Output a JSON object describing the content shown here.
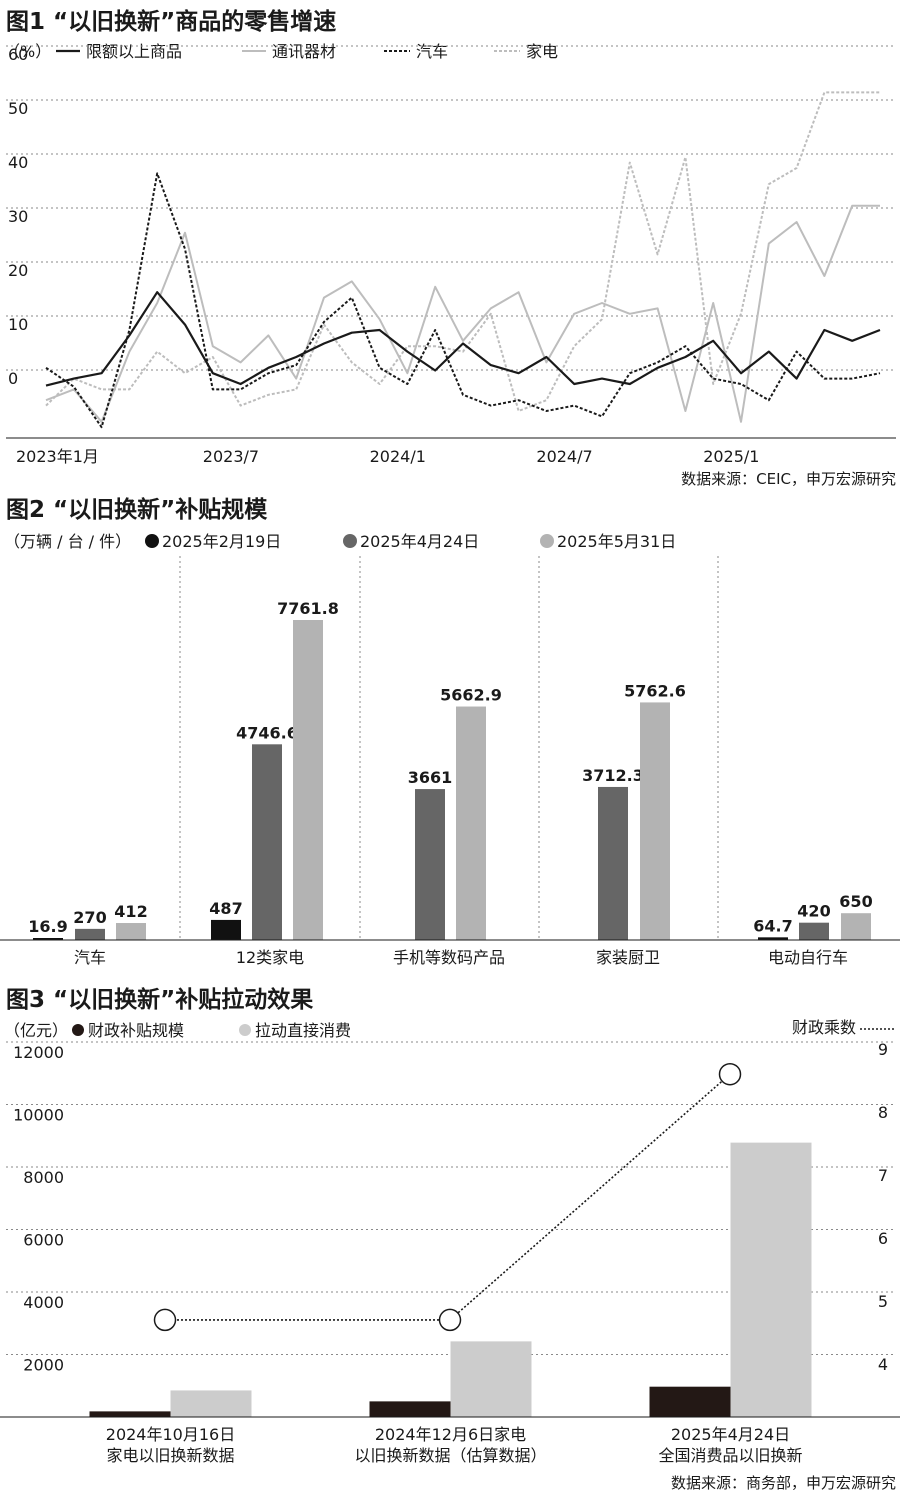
{
  "figure1": {
    "title": "图1 “以旧换新”商品的零售增速",
    "unit": "（%）",
    "source": "数据来源：CEIC，申万宏源研究",
    "chart_data": {
      "type": "line",
      "y_ticks": [
        "60",
        "50",
        "40",
        "30",
        "20",
        "10",
        "0"
      ],
      "ylim": [
        -8,
        60
      ],
      "x_ticks": [
        {
          "label": "2023年1月",
          "i": 0
        },
        {
          "label": "2023/7",
          "i": 6
        },
        {
          "label": "2024/1",
          "i": 12
        },
        {
          "label": "2024/7",
          "i": 18
        },
        {
          "label": "2025/1",
          "i": 24
        }
      ],
      "grid": "dotted-horizontal",
      "legend_position": "top-left",
      "series": [
        {
          "name": "限额以上商品",
          "color": "#1a1a1a",
          "dash": "none",
          "width": 2.2,
          "values": [
            -0.3,
            1,
            2,
            9,
            17,
            11,
            2,
            0,
            3,
            5,
            7.5,
            9.5,
            10,
            6,
            2.5,
            7.5,
            3.5,
            2,
            5,
            0,
            1,
            0,
            3,
            5,
            8,
            2,
            6,
            1,
            10,
            8,
            10
          ]
        },
        {
          "name": "通讯器材",
          "color": "#bdbdbd",
          "dash": "none",
          "width": 2,
          "values": [
            -3,
            -1,
            -7,
            6,
            15,
            28,
            7,
            4,
            9,
            1,
            16,
            19,
            12,
            2,
            18,
            8,
            14,
            17,
            4,
            13,
            15,
            13,
            14,
            -5,
            15,
            -7,
            26,
            30,
            20,
            33,
            33
          ]
        },
        {
          "name": "汽车",
          "color": "#1a1a1a",
          "dash": "3,2",
          "width": 2,
          "values": [
            3,
            -0.5,
            -8,
            10,
            39,
            25,
            -1,
            -1,
            2,
            3.5,
            11.5,
            16,
            3,
            0,
            10,
            -2,
            -4,
            -3,
            -5,
            -4,
            -6,
            2,
            4,
            7,
            1,
            0,
            -3,
            6,
            1,
            1,
            2
          ]
        },
        {
          "name": "家电",
          "color": "#bdbdbd",
          "dash": "3,2",
          "width": 2,
          "values": [
            -4,
            1,
            -1,
            -1,
            6,
            2,
            5,
            -4,
            -2,
            -1,
            11,
            4,
            0,
            7,
            7,
            6,
            13,
            -5,
            -3,
            7,
            12,
            41,
            24,
            42,
            0,
            13,
            37,
            40,
            54,
            54,
            54
          ]
        }
      ]
    }
  },
  "figure2": {
    "title": "图2 “以旧换新”补贴规模",
    "unit": "（万辆 / 台 / 件）",
    "chart_data": {
      "type": "bar",
      "categories": [
        "汽车",
        "12类家电",
        "手机等数码产品",
        "家装厨卫",
        "电动自行车"
      ],
      "series": [
        {
          "name": "2025年2月19日",
          "color": "#111111",
          "values": [
            16.9,
            487,
            null,
            null,
            64.7
          ],
          "labels": [
            "16.9",
            "487",
            "",
            "",
            "64.7"
          ]
        },
        {
          "name": "2025年4月24日",
          "color": "#666666",
          "values": [
            270,
            4746.6,
            3661,
            3712.3,
            420
          ],
          "labels": [
            "270",
            "4746.6",
            "3661",
            "3712.3",
            "420"
          ]
        },
        {
          "name": "2025年5月31日",
          "color": "#b3b3b3",
          "values": [
            412,
            7761.8,
            5662.9,
            5762.6,
            650
          ],
          "labels": [
            "412",
            "7761.8",
            "5662.9",
            "5762.6",
            "650"
          ]
        }
      ],
      "ylim": [
        0,
        8500
      ]
    }
  },
  "figure3": {
    "title": "图3 “以旧换新”补贴拉动效果",
    "unit": "（亿元）",
    "right_label": "财政乘数",
    "source": "数据来源：商务部，申万宏源研究",
    "chart_data": {
      "type": "bar",
      "categories": [
        [
          "2024年10月16日",
          "家电以旧换新数据"
        ],
        [
          "2024年12月6日家电",
          "以旧换新数据（估算数据）"
        ],
        [
          "2025年4月24日",
          "全国消费品以旧换新"
        ]
      ],
      "y_ticks_left": [
        "12000",
        "10000",
        "8000",
        "6000",
        "4000",
        "2000"
      ],
      "y_ticks_right": [
        "9",
        "8",
        "7",
        "6",
        "5",
        "4"
      ],
      "ylim_left": [
        0,
        12000
      ],
      "ylim_right": [
        3.2,
        9
      ],
      "series": [
        {
          "name": "财政补贴规模",
          "color": "#231815",
          "values": [
            180,
            500,
            970
          ]
        },
        {
          "name": "拉动直接消费",
          "color": "#cccccc",
          "values": [
            850,
            2420,
            8780
          ]
        }
      ],
      "multiplier": {
        "name": "财政乘数",
        "values": [
          4.7,
          4.7,
          8.6
        ]
      }
    }
  }
}
